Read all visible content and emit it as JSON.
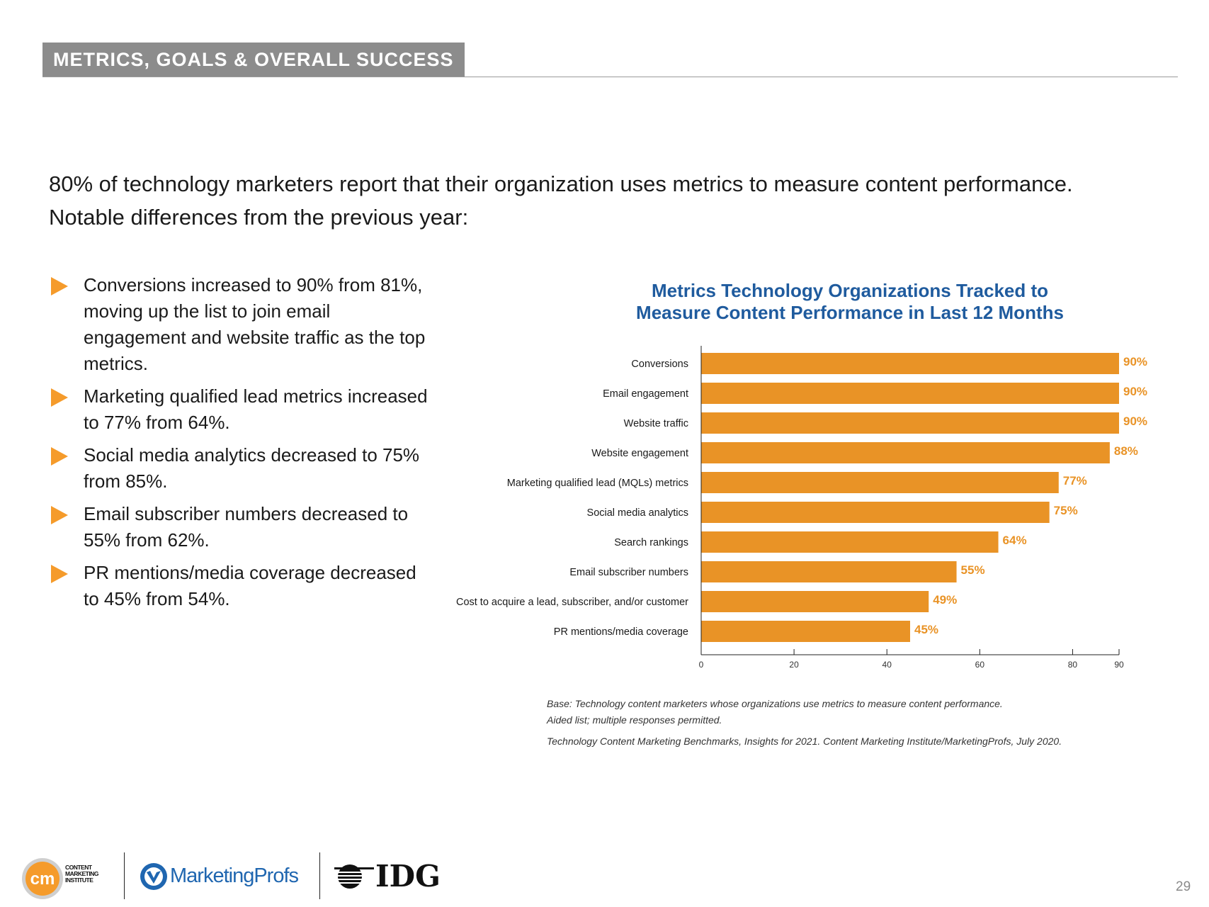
{
  "header": {
    "section_title": "METRICS, GOALS & OVERALL SUCCESS"
  },
  "intro": {
    "line1": "80% of technology marketers report that their organization uses metrics to measure content performance.",
    "line2": "Notable differences from the previous year:"
  },
  "bullets": [
    "Conversions increased to 90% from 81%, moving up the list to join email engagement and website traffic as the top metrics.",
    "Marketing qualified lead metrics increased to 77% from 64%.",
    "Social media analytics decreased to 75% from 85%.",
    "Email subscriber numbers decreased to 55% from 62%.",
    "PR mentions/media coverage decreased to 45% from 54%."
  ],
  "colors": {
    "accent": "#f59b2b",
    "bar": "#e99326",
    "title_blue": "#1f5b9e",
    "tag_gray": "#8c8c8c"
  },
  "chart_data": {
    "type": "bar",
    "orientation": "horizontal",
    "title_line1": "Metrics Technology Organizations Tracked to",
    "title_line2": "Measure Content Performance in Last 12 Months",
    "categories": [
      "Conversions",
      "Email engagement",
      "Website traffic",
      "Website engagement",
      "Marketing qualified lead (MQLs) metrics",
      "Social media analytics",
      "Search rankings",
      "Email subscriber numbers",
      "Cost to acquire a lead, subscriber, and/or customer",
      "PR mentions/media coverage"
    ],
    "values": [
      90,
      90,
      90,
      88,
      77,
      75,
      64,
      55,
      49,
      45
    ],
    "value_labels": [
      "90%",
      "90%",
      "90%",
      "88%",
      "77%",
      "75%",
      "64%",
      "55%",
      "49%",
      "45%"
    ],
    "xlim": [
      0,
      90
    ],
    "xticks": [
      0,
      20,
      40,
      60,
      80,
      90
    ],
    "grid": false
  },
  "notes": {
    "base_line1": "Base: Technology content marketers whose organizations use metrics to measure content performance.",
    "base_line2": "Aided list; multiple responses permitted.",
    "source": "Technology Content Marketing Benchmarks, Insights for 2021. Content Marketing Institute/MarketingProfs, July 2020."
  },
  "footer": {
    "cmi_line1": "CONTENT",
    "cmi_line2": "MARKETING",
    "cmi_line3": "INSTITUTE",
    "cmi_mark": "cm",
    "marketingprofs": "MarketingProfs",
    "idg": "IDG",
    "page_number": "29"
  }
}
